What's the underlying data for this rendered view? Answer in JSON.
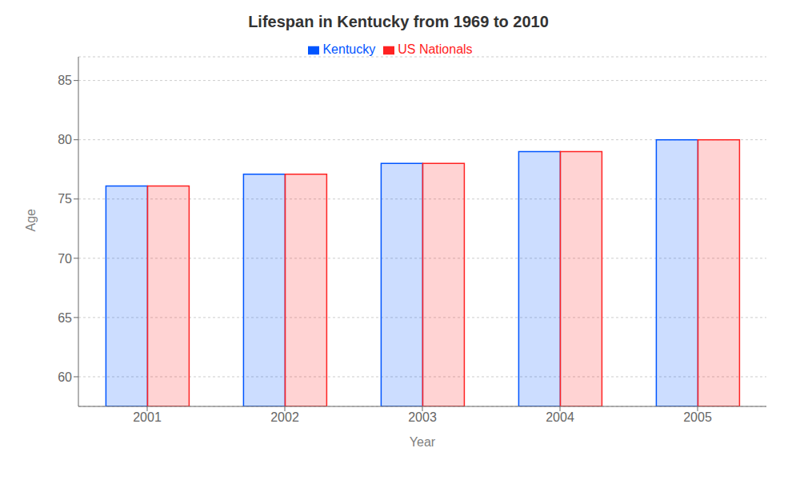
{
  "chart_data": {
    "type": "bar",
    "title": "Lifespan in Kentucky from 1969 to 2010",
    "x_label": "Year",
    "y_label": "Age",
    "categories": [
      "2001",
      "2002",
      "2003",
      "2004",
      "2005"
    ],
    "series": [
      {
        "name": "Kentucky",
        "color": "#0055ff",
        "values": [
          76.1,
          77.1,
          78.0,
          79.0,
          80.0
        ]
      },
      {
        "name": "US Nationals",
        "color": "#ff2222",
        "values": [
          76.1,
          77.1,
          78.0,
          79.0,
          80.0
        ]
      }
    ],
    "ylim": [
      57.5,
      87
    ],
    "yticks": [
      60,
      65,
      70,
      75,
      80,
      85
    ],
    "grid": true,
    "legend": "top"
  }
}
